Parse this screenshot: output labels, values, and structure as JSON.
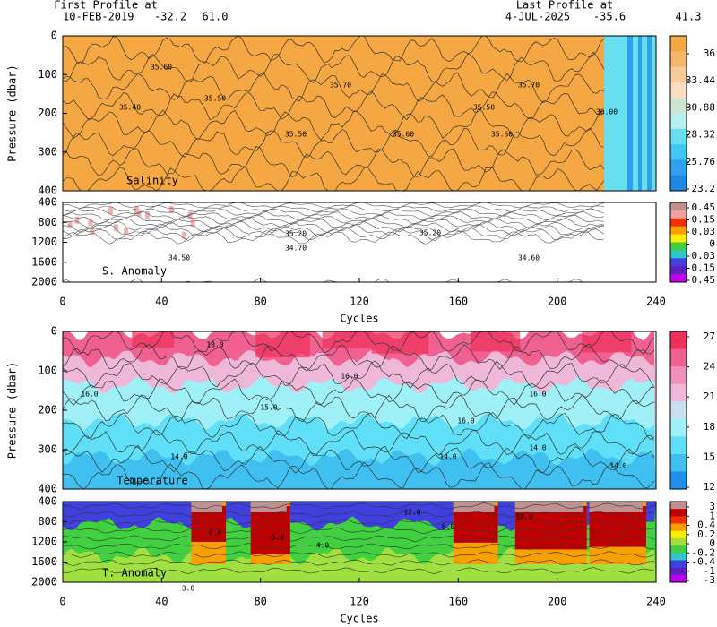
{
  "header": {
    "first_label": "First Profile at",
    "first_date": "10-FEB-2019",
    "first_lat": "-32.2",
    "first_lon": "61.0",
    "last_label": "Last Profile at",
    "last_date": "4-JUL-2025",
    "last_lat": "-35.6",
    "last_lon": "41.3"
  },
  "chart_data": [
    {
      "type": "contour",
      "label": "Salinity",
      "ylabel": "Pressure (dbar)",
      "ylim": [
        0,
        400
      ],
      "y_inverted": true,
      "yticks": [
        0,
        100,
        200,
        300,
        400
      ],
      "xlim": [
        0,
        240
      ],
      "contour_labels": [
        "35.60",
        "35.50",
        "35.40",
        "35.50",
        "35.70",
        "35.60",
        "35.50",
        "35.60",
        "35.70",
        "36.00"
      ],
      "colorbar": {
        "ticks": [
          36,
          33.44,
          30.88,
          28.32,
          25.76,
          23.2
        ],
        "colors": [
          "#f4a742",
          "#f6b76a",
          "#f8cc9a",
          "#f9dec0",
          "#cfe5d4",
          "#b8f0f0",
          "#66e0f0",
          "#40c8f0",
          "#2fa0f0",
          "#1e88e8"
        ]
      }
    },
    {
      "type": "contour",
      "label": "S. Anomaly",
      "xlabel": "Cycles",
      "ylim": [
        400,
        2000
      ],
      "y_inverted": true,
      "yticks": [
        400,
        800,
        1200,
        1600,
        2000
      ],
      "xlim": [
        0,
        240
      ],
      "xticks": [
        0,
        40,
        80,
        120,
        160,
        200,
        240
      ],
      "contour_labels": [
        "35.20",
        "34.70",
        "34.50",
        "35.20",
        "34.60"
      ],
      "colorbar": {
        "ticks": [
          0.45,
          0.15,
          0.03,
          0,
          -0.03,
          -0.15,
          -0.45
        ],
        "colors": [
          "#c09090",
          "#f0a0a0",
          "#f03000",
          "#f8a000",
          "#f8f000",
          "#40d040",
          "#30c8c8",
          "#4040e0",
          "#6020c0",
          "#c000f0"
        ]
      }
    },
    {
      "type": "contour",
      "label": "Temperature",
      "ylabel": "Pressure (dbar)",
      "ylim": [
        0,
        400
      ],
      "y_inverted": true,
      "yticks": [
        0,
        100,
        200,
        300,
        400
      ],
      "xlim": [
        0,
        240
      ],
      "contour_labels": [
        "18.0",
        "16.0",
        "15.0",
        "14.0",
        "16.0",
        "14.0",
        "16.0",
        "14.0",
        "16.0",
        "14.0"
      ],
      "colorbar": {
        "ticks": [
          27,
          24,
          21,
          18,
          15,
          12
        ],
        "colors": [
          "#f0305a",
          "#f06090",
          "#f090b8",
          "#f0b8d8",
          "#c8e0f0",
          "#a0f0f8",
          "#60e0f8",
          "#40c0f0",
          "#2090f0"
        ]
      }
    },
    {
      "type": "contour",
      "label": "T. Anomaly",
      "xlabel": "Cycles",
      "ylim": [
        400,
        2000
      ],
      "y_inverted": true,
      "yticks": [
        400,
        800,
        1200,
        1600,
        2000
      ],
      "xlim": [
        0,
        240
      ],
      "xticks": [
        0,
        40,
        80,
        120,
        160,
        200,
        240
      ],
      "contour_labels": [
        "6.0",
        "5.0",
        "4.0",
        "3.0",
        "12.0",
        "8.0",
        "10.0"
      ],
      "colorbar": {
        "ticks": [
          3,
          1,
          0.4,
          0.2,
          0,
          -0.2,
          -0.4,
          -1,
          -3
        ],
        "colors": [
          "#c09090",
          "#c00000",
          "#f03000",
          "#f8a000",
          "#f8f000",
          "#a0e040",
          "#40d040",
          "#30c8c8",
          "#4040e0",
          "#6020c0",
          "#c000f0"
        ]
      }
    }
  ]
}
